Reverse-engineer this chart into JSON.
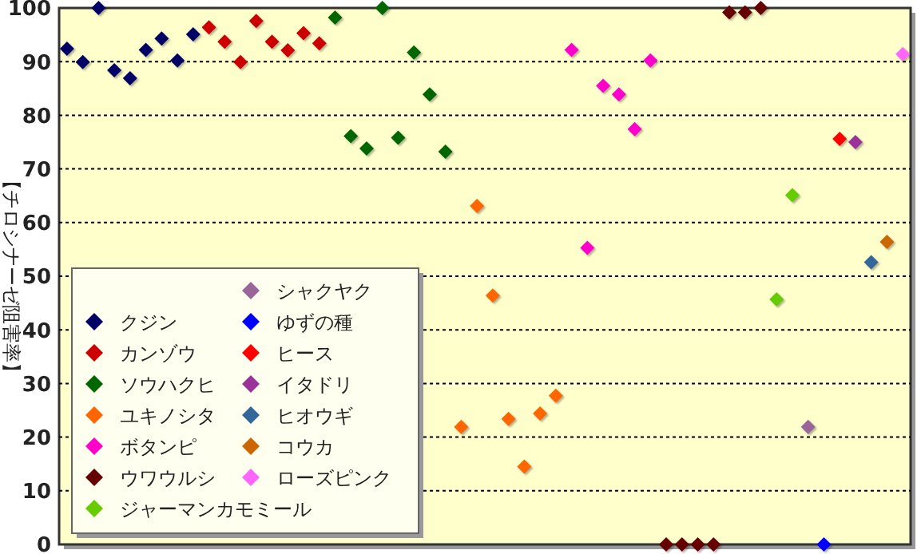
{
  "chart_data": {
    "type": "scatter",
    "ylabel": "【チロシナーゼ阻害率】",
    "categories": [
      null,
      null,
      null,
      null,
      null,
      null,
      null,
      null,
      null,
      null,
      null,
      null,
      null,
      null,
      null,
      null,
      null,
      null,
      null,
      null,
      null,
      null,
      null,
      null,
      null,
      null,
      null,
      null,
      null,
      null,
      null,
      null,
      null,
      null,
      null,
      null,
      null,
      null,
      null,
      null,
      null,
      null,
      null,
      null,
      null,
      null,
      null,
      null,
      null,
      null,
      null,
      null,
      null,
      null
    ],
    "ylim": [
      0,
      100
    ],
    "yticks": [
      0,
      10,
      20,
      30,
      40,
      50,
      60,
      70,
      80,
      90,
      100
    ],
    "grid": "y",
    "legend": "bottom left",
    "marker": "diamond",
    "tick_labels": "y",
    "series": [
      {
        "name": "クジン",
        "color": "#000066",
        "values": [
          92.4,
          89.9,
          100,
          88.4,
          86.9,
          92.2,
          94.3,
          90.2,
          95.1,
          null,
          null,
          null,
          null,
          null,
          null,
          null,
          null,
          null,
          null,
          null,
          null,
          null,
          null,
          null,
          null,
          null,
          null,
          null,
          null,
          null,
          null,
          null,
          null,
          null,
          null,
          null,
          null,
          null,
          null,
          null,
          null,
          null,
          null,
          null,
          null,
          null,
          null,
          null,
          null,
          null,
          null,
          null,
          null,
          null
        ]
      },
      {
        "name": "カンゾウ",
        "color": "#cc0000",
        "values": [
          null,
          null,
          null,
          null,
          null,
          null,
          null,
          null,
          null,
          96.4,
          93.7,
          89.9,
          97.6,
          93.7,
          92.1,
          95.3,
          93.4,
          null,
          null,
          null,
          null,
          null,
          null,
          null,
          null,
          null,
          null,
          null,
          null,
          null,
          null,
          null,
          null,
          null,
          null,
          null,
          null,
          null,
          null,
          null,
          null,
          null,
          null,
          null,
          null,
          null,
          null,
          null,
          null,
          null,
          null,
          null,
          null,
          null
        ]
      },
      {
        "name": "ソウハクヒ",
        "color": "#006600",
        "values": [
          null,
          null,
          null,
          null,
          null,
          null,
          null,
          null,
          null,
          null,
          null,
          null,
          null,
          null,
          null,
          null,
          null,
          98.2,
          76.1,
          73.8,
          100,
          75.8,
          91.7,
          83.9,
          73.2,
          null,
          null,
          null,
          null,
          null,
          null,
          null,
          null,
          null,
          null,
          null,
          null,
          null,
          null,
          null,
          null,
          null,
          null,
          null,
          null,
          null,
          null,
          null,
          null,
          null,
          null,
          null,
          null,
          null
        ]
      },
      {
        "name": "ユキノシタ",
        "color": "#ff6600",
        "values": [
          null,
          null,
          null,
          null,
          null,
          null,
          null,
          null,
          null,
          null,
          null,
          null,
          null,
          null,
          null,
          null,
          null,
          null,
          null,
          null,
          null,
          null,
          null,
          null,
          null,
          21.9,
          63.1,
          46.4,
          23.4,
          14.5,
          24.4,
          27.7,
          null,
          null,
          null,
          null,
          null,
          null,
          null,
          null,
          null,
          null,
          null,
          null,
          null,
          null,
          null,
          null,
          null,
          null,
          null,
          null,
          null,
          null
        ]
      },
      {
        "name": "ボタンピ",
        "color": "#ff00cc",
        "values": [
          null,
          null,
          null,
          null,
          null,
          null,
          null,
          null,
          null,
          null,
          null,
          null,
          null,
          null,
          null,
          null,
          null,
          null,
          null,
          null,
          null,
          null,
          null,
          null,
          null,
          null,
          null,
          null,
          null,
          null,
          null,
          null,
          92.2,
          55.3,
          85.5,
          83.9,
          77.4,
          90.2,
          null,
          null,
          null,
          null,
          null,
          null,
          null,
          null,
          null,
          null,
          null,
          null,
          null,
          null,
          null,
          null
        ]
      },
      {
        "name": "ウワウルシ",
        "color": "#660000",
        "values": [
          null,
          null,
          null,
          null,
          null,
          null,
          null,
          null,
          null,
          null,
          null,
          null,
          null,
          null,
          null,
          null,
          null,
          null,
          null,
          null,
          null,
          null,
          null,
          null,
          null,
          null,
          null,
          null,
          null,
          null,
          null,
          null,
          null,
          null,
          null,
          null,
          null,
          null,
          0,
          0,
          0,
          0,
          99.2,
          99.2,
          100,
          null,
          null,
          null,
          null,
          null,
          null,
          null,
          null,
          null
        ]
      },
      {
        "name": "ジャーマンカモミール",
        "color": "#66cc00",
        "values": [
          null,
          null,
          null,
          null,
          null,
          null,
          null,
          null,
          null,
          null,
          null,
          null,
          null,
          null,
          null,
          null,
          null,
          null,
          null,
          null,
          null,
          null,
          null,
          null,
          null,
          null,
          null,
          null,
          null,
          null,
          null,
          null,
          null,
          null,
          null,
          null,
          null,
          null,
          null,
          null,
          null,
          null,
          null,
          null,
          null,
          45.7,
          65.1,
          null,
          null,
          null,
          null,
          null,
          null,
          null
        ]
      },
      {
        "name": "シャクヤク",
        "color": "#996699",
        "values": [
          null,
          null,
          null,
          null,
          null,
          null,
          null,
          null,
          null,
          null,
          null,
          null,
          null,
          null,
          null,
          null,
          null,
          null,
          null,
          null,
          null,
          null,
          null,
          null,
          null,
          null,
          null,
          null,
          null,
          null,
          null,
          null,
          null,
          null,
          null,
          null,
          null,
          null,
          null,
          null,
          null,
          null,
          null,
          null,
          null,
          null,
          null,
          21.9,
          null,
          null,
          null,
          null,
          null,
          null
        ]
      },
      {
        "name": "ゆずの種",
        "color": "#0000ff",
        "values": [
          null,
          null,
          null,
          null,
          null,
          null,
          null,
          null,
          null,
          null,
          null,
          null,
          null,
          null,
          null,
          null,
          null,
          null,
          null,
          null,
          null,
          null,
          null,
          null,
          null,
          null,
          null,
          null,
          null,
          null,
          null,
          null,
          null,
          null,
          null,
          null,
          null,
          null,
          null,
          null,
          null,
          null,
          null,
          null,
          null,
          null,
          null,
          null,
          0,
          null,
          null,
          null,
          null,
          null
        ]
      },
      {
        "name": "ヒース",
        "color": "#ff0000",
        "values": [
          null,
          null,
          null,
          null,
          null,
          null,
          null,
          null,
          null,
          null,
          null,
          null,
          null,
          null,
          null,
          null,
          null,
          null,
          null,
          null,
          null,
          null,
          null,
          null,
          null,
          null,
          null,
          null,
          null,
          null,
          null,
          null,
          null,
          null,
          null,
          null,
          null,
          null,
          null,
          null,
          null,
          null,
          null,
          null,
          null,
          null,
          null,
          null,
          null,
          75.6,
          null,
          null,
          null,
          null
        ]
      },
      {
        "name": "イタドリ",
        "color": "#993399",
        "values": [
          null,
          null,
          null,
          null,
          null,
          null,
          null,
          null,
          null,
          null,
          null,
          null,
          null,
          null,
          null,
          null,
          null,
          null,
          null,
          null,
          null,
          null,
          null,
          null,
          null,
          null,
          null,
          null,
          null,
          null,
          null,
          null,
          null,
          null,
          null,
          null,
          null,
          null,
          null,
          null,
          null,
          null,
          null,
          null,
          null,
          null,
          null,
          null,
          null,
          null,
          75.0,
          null,
          null,
          null
        ]
      },
      {
        "name": "ヒオウギ",
        "color": "#336699",
        "values": [
          null,
          null,
          null,
          null,
          null,
          null,
          null,
          null,
          null,
          null,
          null,
          null,
          null,
          null,
          null,
          null,
          null,
          null,
          null,
          null,
          null,
          null,
          null,
          null,
          null,
          null,
          null,
          null,
          null,
          null,
          null,
          null,
          null,
          null,
          null,
          null,
          null,
          null,
          null,
          null,
          null,
          null,
          null,
          null,
          null,
          null,
          null,
          null,
          null,
          null,
          null,
          52.6,
          null,
          null
        ]
      },
      {
        "name": "コウカ",
        "color": "#cc6600",
        "values": [
          null,
          null,
          null,
          null,
          null,
          null,
          null,
          null,
          null,
          null,
          null,
          null,
          null,
          null,
          null,
          null,
          null,
          null,
          null,
          null,
          null,
          null,
          null,
          null,
          null,
          null,
          null,
          null,
          null,
          null,
          null,
          null,
          null,
          null,
          null,
          null,
          null,
          null,
          null,
          null,
          null,
          null,
          null,
          null,
          null,
          null,
          null,
          null,
          null,
          null,
          null,
          null,
          56.4,
          null
        ]
      },
      {
        "name": "ローズピンク",
        "color": "#ff66ff",
        "values": [
          null,
          null,
          null,
          null,
          null,
          null,
          null,
          null,
          null,
          null,
          null,
          null,
          null,
          null,
          null,
          null,
          null,
          null,
          null,
          null,
          null,
          null,
          null,
          null,
          null,
          null,
          null,
          null,
          null,
          null,
          null,
          null,
          null,
          null,
          null,
          null,
          null,
          null,
          null,
          null,
          null,
          null,
          null,
          null,
          null,
          null,
          null,
          null,
          null,
          null,
          null,
          null,
          null,
          91.4
        ]
      }
    ]
  }
}
